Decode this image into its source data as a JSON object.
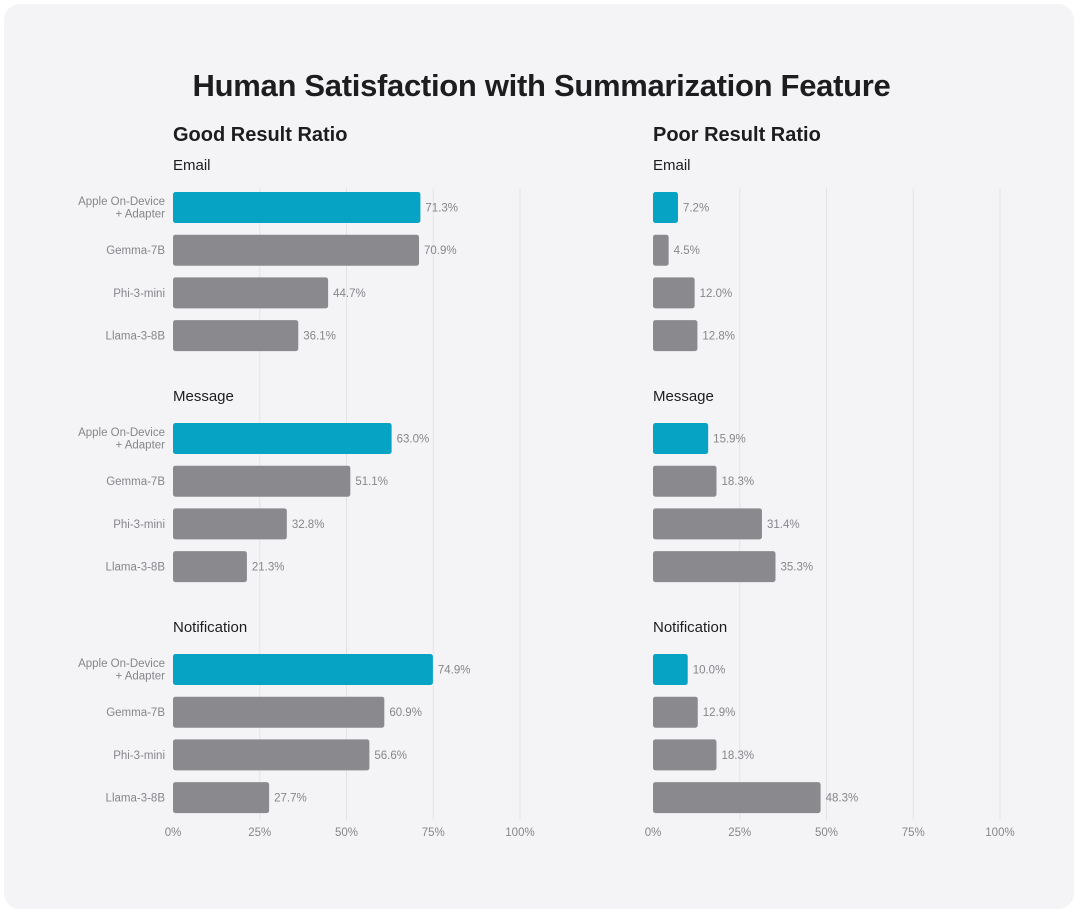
{
  "chart_data": {
    "type": "bar",
    "orientation": "horizontal",
    "title": "Human Satisfaction with Summarization Feature",
    "categories": [
      "Apple On-Device\n+ Adapter",
      "Gemma-7B",
      "Phi-3-mini",
      "Llama-3-8B"
    ],
    "xlim": [
      0,
      100
    ],
    "x_ticks": [
      "0%",
      "25%",
      "50%",
      "75%",
      "100%"
    ],
    "grid": true,
    "colors": {
      "highlight": "#06a3c4",
      "default": "#8a8a8e"
    },
    "panels": [
      {
        "title": "Good Result Ratio",
        "groups": [
          {
            "name": "Email",
            "values": [
              71.3,
              70.9,
              44.7,
              36.1
            ],
            "labels": [
              "71.3%",
              "70.9%",
              "44.7%",
              "36.1%"
            ]
          },
          {
            "name": "Message",
            "values": [
              63.0,
              51.1,
              32.8,
              21.3
            ],
            "labels": [
              "63.0%",
              "51.1%",
              "32.8%",
              "21.3%"
            ]
          },
          {
            "name": "Notification",
            "values": [
              74.9,
              60.9,
              56.6,
              27.7
            ],
            "labels": [
              "74.9%",
              "60.9%",
              "56.6%",
              "27.7%"
            ]
          }
        ]
      },
      {
        "title": "Poor Result Ratio",
        "groups": [
          {
            "name": "Email",
            "values": [
              7.2,
              4.5,
              12.0,
              12.8
            ],
            "labels": [
              "7.2%",
              "4.5%",
              "12.0%",
              "12.8%"
            ]
          },
          {
            "name": "Message",
            "values": [
              15.9,
              18.3,
              31.4,
              35.3
            ],
            "labels": [
              "15.9%",
              "18.3%",
              "31.4%",
              "35.3%"
            ]
          },
          {
            "name": "Notification",
            "values": [
              10.0,
              12.9,
              18.3,
              48.3
            ],
            "labels": [
              "10.0%",
              "12.9%",
              "18.3%",
              "48.3%"
            ]
          }
        ]
      }
    ]
  }
}
